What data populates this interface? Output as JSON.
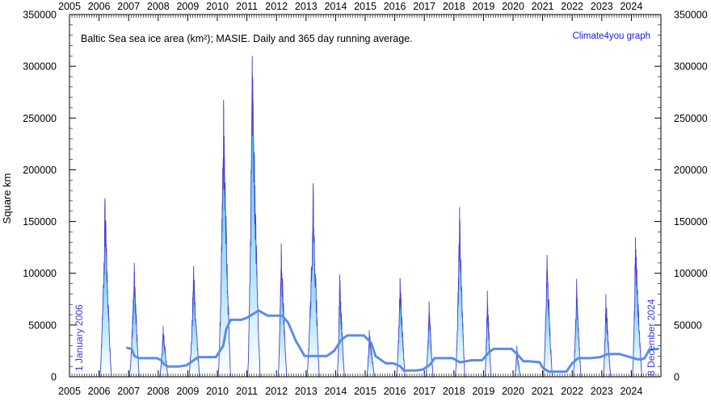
{
  "chart_data": {
    "type": "area",
    "title": "Baltic Sea sea ice area (km²); MASIE. Daily and 365 day running average.",
    "credit": "Climate4you graph",
    "ylabel": "Square km",
    "start_label": "1 January 2006",
    "end_label": "8 December 2024",
    "xlim": [
      2005,
      2025
    ],
    "ylim": [
      0,
      350000
    ],
    "x_ticks": [
      "2005",
      "2006",
      "2007",
      "2008",
      "2009",
      "2010",
      "2011",
      "2012",
      "2013",
      "2014",
      "2015",
      "2016",
      "2017",
      "2018",
      "2019",
      "2020",
      "2021",
      "2022",
      "2023",
      "2024"
    ],
    "y_ticks": [
      "0",
      "50000",
      "100000",
      "150000",
      "200000",
      "250000",
      "300000",
      "350000"
    ],
    "colors": {
      "daily_line": "#4a3fd0",
      "area_top": "#0fb6ea",
      "area_bottom": "#ffffff",
      "average_line": "#5b8de8"
    },
    "series": [
      {
        "name": "",
        "kind": "daily",
        "seasons": [
          {
            "start": 2006.02,
            "peak_t": 2006.2,
            "end": 2006.42,
            "peak": 175000
          },
          {
            "start": 2007.02,
            "peak_t": 2007.19,
            "end": 2007.36,
            "peak": 110000
          },
          {
            "start": 2008.04,
            "peak_t": 2008.17,
            "end": 2008.33,
            "peak": 50000
          },
          {
            "start": 2009.03,
            "peak_t": 2009.2,
            "end": 2009.4,
            "peak": 108000
          },
          {
            "start": 2010.02,
            "peak_t": 2010.21,
            "end": 2010.45,
            "peak": 268000
          },
          {
            "start": 2011.02,
            "peak_t": 2011.18,
            "end": 2011.45,
            "peak": 311000
          },
          {
            "start": 2012.05,
            "peak_t": 2012.16,
            "end": 2012.35,
            "peak": 130000
          },
          {
            "start": 2013.02,
            "peak_t": 2013.24,
            "end": 2013.45,
            "peak": 188000
          },
          {
            "start": 2014.05,
            "peak_t": 2014.14,
            "end": 2014.3,
            "peak": 100000
          },
          {
            "start": 2015.05,
            "peak_t": 2015.14,
            "end": 2015.32,
            "peak": 46000
          },
          {
            "start": 2016.05,
            "peak_t": 2016.18,
            "end": 2016.35,
            "peak": 97000
          },
          {
            "start": 2017.05,
            "peak_t": 2017.16,
            "end": 2017.3,
            "peak": 73000
          },
          {
            "start": 2018.04,
            "peak_t": 2018.19,
            "end": 2018.37,
            "peak": 165000
          },
          {
            "start": 2019.04,
            "peak_t": 2019.13,
            "end": 2019.26,
            "peak": 84000
          },
          {
            "start": 2020.05,
            "peak_t": 2020.13,
            "end": 2020.25,
            "peak": 30000
          },
          {
            "start": 2021.02,
            "peak_t": 2021.15,
            "end": 2021.33,
            "peak": 120000
          },
          {
            "start": 2022.03,
            "peak_t": 2022.15,
            "end": 2022.3,
            "peak": 95000
          },
          {
            "start": 2023.05,
            "peak_t": 2023.14,
            "end": 2023.3,
            "peak": 81000
          },
          {
            "start": 2024.03,
            "peak_t": 2024.14,
            "end": 2024.36,
            "peak": 138000
          }
        ]
      },
      {
        "name": "",
        "kind": "running_average",
        "x": [
          2006.95,
          2007.1,
          2007.2,
          2007.35,
          2007.55,
          2007.7,
          2007.95,
          2008.1,
          2008.2,
          2008.33,
          2008.7,
          2008.95,
          2009.2,
          2009.35,
          2009.65,
          2009.95,
          2010.2,
          2010.3,
          2010.45,
          2010.6,
          2010.8,
          2011.0,
          2011.4,
          2011.7,
          2011.95,
          2012.2,
          2012.4,
          2012.65,
          2012.95,
          2013.2,
          2013.45,
          2013.7,
          2013.95,
          2014.2,
          2014.4,
          2014.7,
          2014.95,
          2015.2,
          2015.35,
          2015.7,
          2015.95,
          2016.2,
          2016.3,
          2016.45,
          2016.7,
          2016.95,
          2017.2,
          2017.35,
          2017.6,
          2017.95,
          2018.2,
          2018.4,
          2018.6,
          2018.95,
          2019.2,
          2019.35,
          2019.55,
          2019.95,
          2020.2,
          2020.35,
          2020.55,
          2020.9,
          2021.0,
          2021.2,
          2021.35,
          2021.55,
          2021.8,
          2022.0,
          2022.2,
          2022.35,
          2022.6,
          2022.95,
          2023.2,
          2023.35,
          2023.6,
          2023.95,
          2024.2,
          2024.35,
          2024.45,
          2024.6,
          2024.9
        ],
        "values": [
          28000,
          27000,
          20000,
          18000,
          18000,
          18000,
          18000,
          16000,
          12000,
          10000,
          10000,
          11000,
          16000,
          19000,
          19000,
          19000,
          30000,
          46000,
          55000,
          55000,
          55000,
          57000,
          64000,
          59000,
          59000,
          59000,
          52000,
          35000,
          20000,
          20000,
          20000,
          20000,
          25000,
          36000,
          40000,
          40000,
          40000,
          33000,
          20000,
          13000,
          13000,
          10000,
          6000,
          6000,
          6000,
          7000,
          12000,
          18000,
          18000,
          18000,
          14000,
          15000,
          16000,
          16000,
          24000,
          27000,
          27000,
          27000,
          20000,
          15000,
          15000,
          14000,
          9000,
          5000,
          5000,
          5000,
          5000,
          13000,
          18000,
          18000,
          18000,
          19000,
          22000,
          22000,
          22000,
          19000,
          17000,
          17000,
          18000,
          26000,
          27000
        ]
      }
    ]
  }
}
